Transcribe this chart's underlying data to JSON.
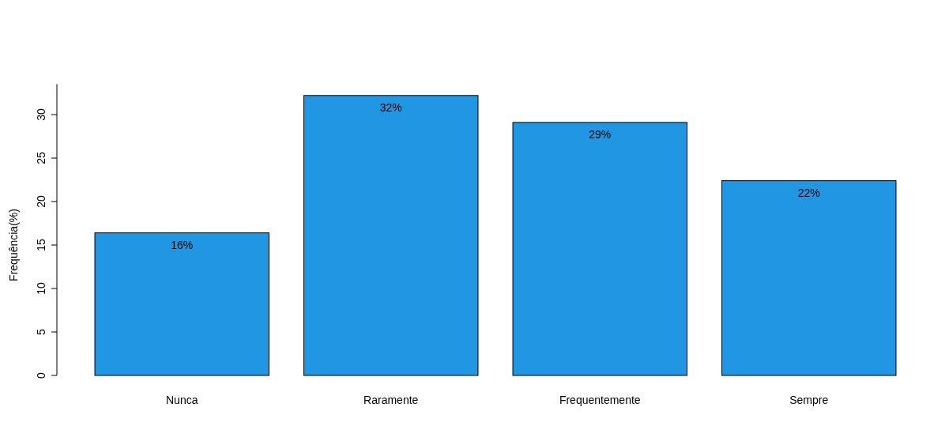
{
  "chart_data": {
    "type": "bar",
    "ylabel": "Frequência(%)",
    "categories": [
      "Nunca",
      "Raramente",
      "Frequentemente",
      "Sempre"
    ],
    "values": [
      16.4,
      32.2,
      29.1,
      22.4
    ],
    "value_labels": [
      "16%",
      "32%",
      "29%",
      "22%"
    ],
    "color": "#2196e3",
    "ylim": [
      0,
      33.5
    ],
    "yticks": [
      0,
      5,
      10,
      15,
      20,
      25,
      30
    ],
    "grid": false
  }
}
